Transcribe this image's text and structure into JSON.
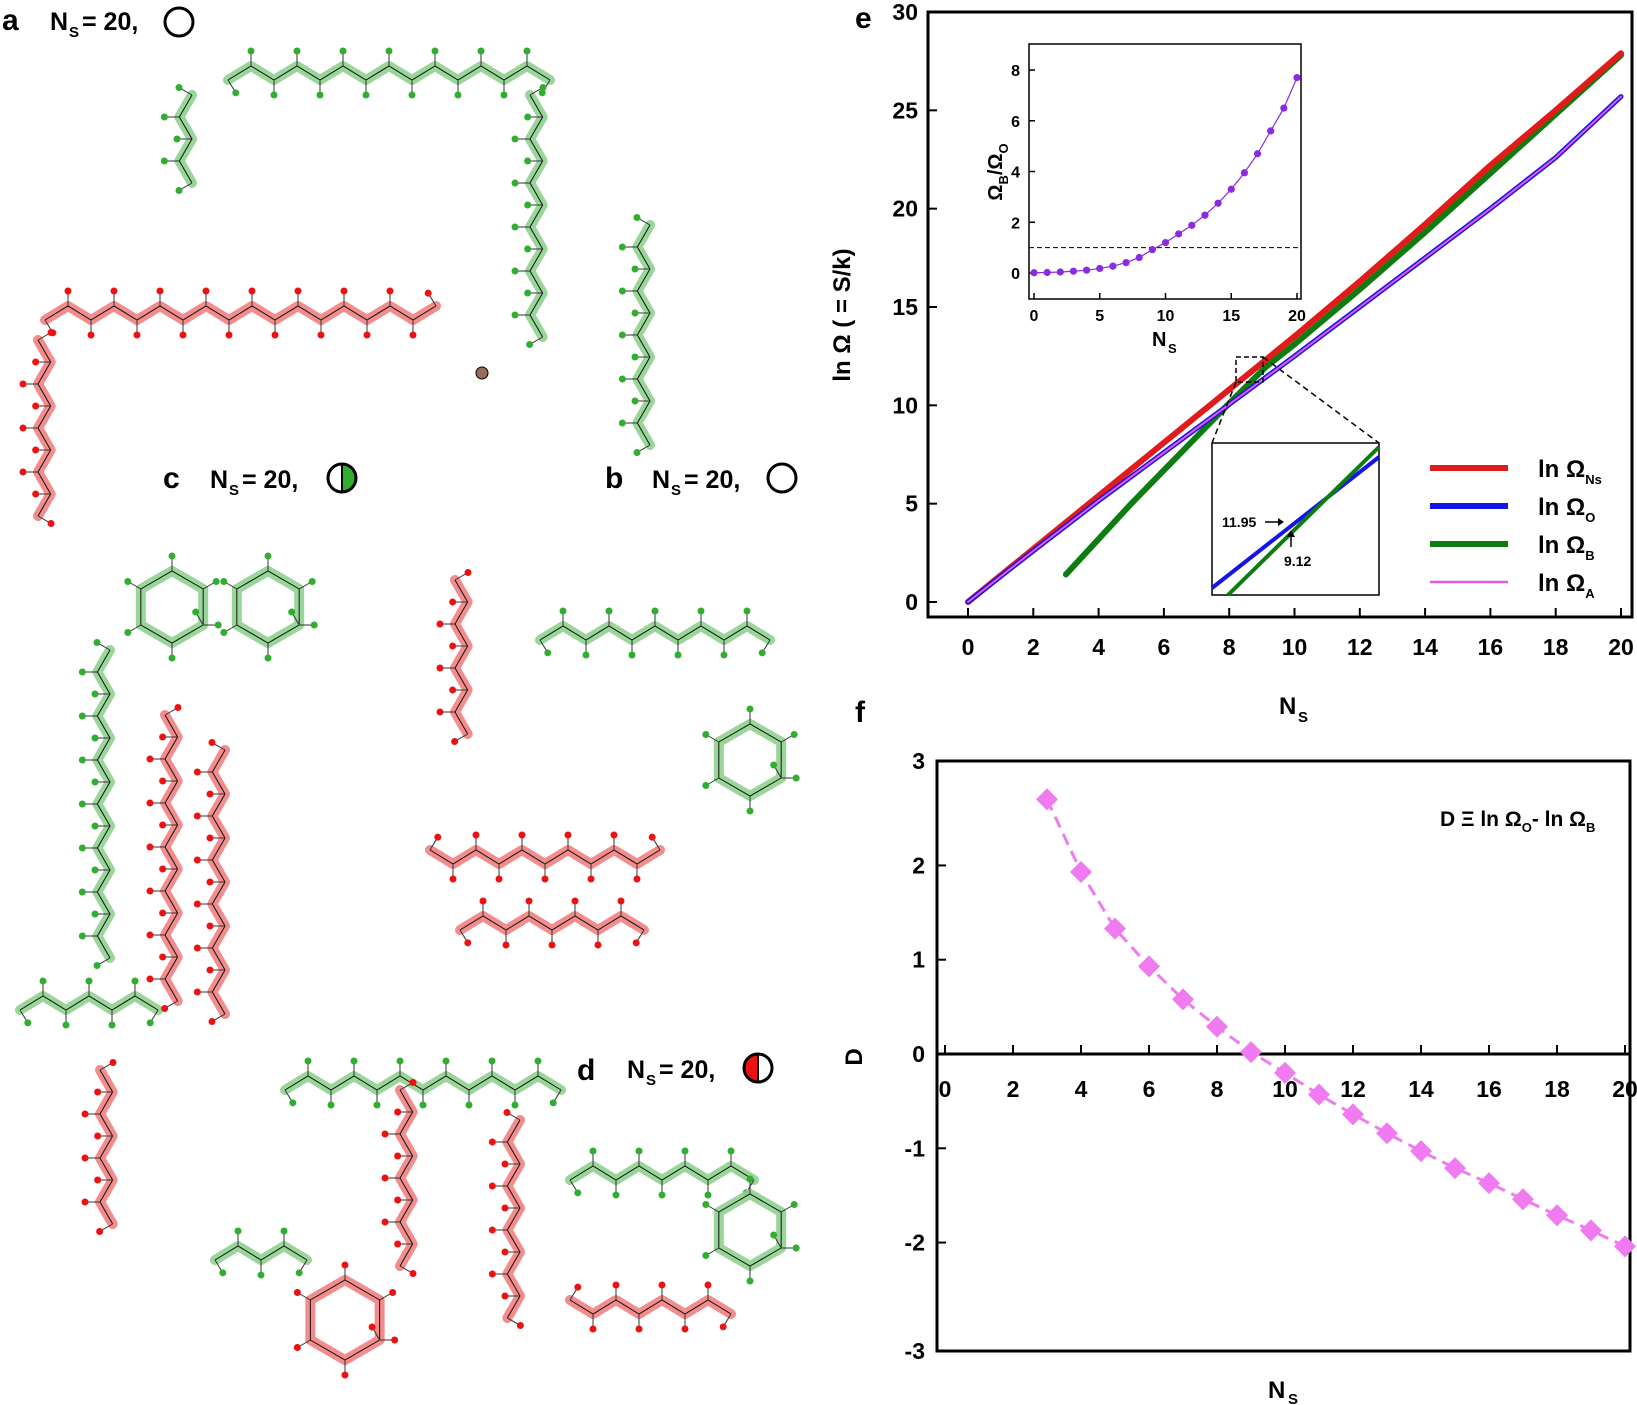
{
  "panels": {
    "a": {
      "letter": "a",
      "ns_label": "N",
      "ns_sub": "S",
      "ns_value": "= 20,"
    },
    "b": {
      "letter": "b",
      "ns_label": "N",
      "ns_sub": "S",
      "ns_value": "= 20,"
    },
    "c": {
      "letter": "c",
      "ns_label": "N",
      "ns_sub": "S",
      "ns_value": "= 20,"
    },
    "d": {
      "letter": "d",
      "ns_label": "N",
      "ns_sub": "S",
      "ns_value": "= 20,"
    },
    "e": {
      "letter": "e"
    },
    "f": {
      "letter": "f"
    }
  },
  "colors": {
    "red": "#f28080",
    "green": "#8fd08f",
    "dot_red": "#ee1111",
    "dot_green": "#2fae2f",
    "omega_ns": "#e11b1b",
    "omega_o": "#1414e6",
    "omega_b": "#0d7d10",
    "omega_a": "#e659e6",
    "ratio": "#8a2be2",
    "d_series": "#f07bf0"
  },
  "chart_data": [
    {
      "id": "e",
      "type": "line",
      "ylabel": "ln Ω ( = S/k)",
      "xlabel_main": "N",
      "xlabel_sub": "S",
      "xlim": [
        0,
        20
      ],
      "ylim": [
        0,
        30
      ],
      "xticks": [
        "0",
        "2",
        "4",
        "6",
        "8",
        "10",
        "12",
        "14",
        "16",
        "18",
        "20"
      ],
      "yticks": [
        "0",
        "5",
        "10",
        "15",
        "20",
        "25",
        "30"
      ],
      "series": [
        {
          "name": "ln Ω",
          "sub": "Ns",
          "color": "#e11b1b",
          "x": [
            0,
            2,
            4,
            6,
            8,
            10,
            12,
            14,
            16,
            18,
            20
          ],
          "y": [
            0,
            2.7,
            5.4,
            8.1,
            10.8,
            13.5,
            16.3,
            19.2,
            22.2,
            25.0,
            27.9
          ]
        },
        {
          "name": "ln Ω",
          "sub": "O",
          "color": "#1414e6",
          "x": [
            0,
            2,
            4,
            6,
            8,
            10,
            12,
            14,
            16,
            18,
            20
          ],
          "y": [
            0,
            2.6,
            5.15,
            7.6,
            10.05,
            12.5,
            15.0,
            17.5,
            20.0,
            22.6,
            25.7
          ]
        },
        {
          "name": "ln Ω",
          "sub": "B",
          "color": "#0d7d10",
          "x": [
            3,
            4,
            5,
            6,
            7,
            8,
            9.12,
            10,
            12,
            14,
            16,
            18,
            20
          ],
          "y": [
            1.4,
            3.2,
            5.0,
            6.7,
            8.4,
            10.1,
            11.95,
            13.1,
            15.9,
            18.8,
            21.8,
            24.8,
            27.8
          ]
        },
        {
          "name": "ln Ω",
          "sub": "A",
          "color": "#e659e6",
          "x": [
            0,
            2,
            4,
            6,
            8,
            10,
            12,
            14,
            16,
            18,
            20
          ],
          "y": [
            0,
            2.6,
            5.15,
            7.6,
            10.05,
            12.5,
            15.0,
            17.5,
            20.0,
            22.6,
            25.7
          ]
        }
      ],
      "zoom_annotation": {
        "y_value": "11.95",
        "x_value": "9.12"
      },
      "inset": {
        "type": "scatter-line",
        "ylabel_main": "Ω",
        "ylabel_sub_1": "B",
        "ylabel_slash": "/Ω",
        "ylabel_sub_2": "O",
        "xlabel_main": "N",
        "xlabel_sub": "S",
        "xlim": [
          0,
          20
        ],
        "ylim": [
          0,
          8
        ],
        "xticks": [
          "0",
          "5",
          "10",
          "15",
          "20"
        ],
        "yticks": [
          "0",
          "2",
          "4",
          "6",
          "8"
        ],
        "reference_line_y": 1,
        "x": [
          0,
          1,
          2,
          3,
          4,
          5,
          6,
          7,
          8,
          9,
          10,
          11,
          12,
          13,
          14,
          15,
          16,
          17,
          18,
          19,
          20
        ],
        "y": [
          0.01,
          0.02,
          0.04,
          0.07,
          0.11,
          0.18,
          0.27,
          0.41,
          0.61,
          0.92,
          1.2,
          1.54,
          1.88,
          2.28,
          2.75,
          3.3,
          3.95,
          4.7,
          5.6,
          6.5,
          7.7
        ]
      }
    },
    {
      "id": "f",
      "type": "line",
      "ylabel": "D",
      "xlabel_main": "N",
      "xlabel_sub": "S",
      "xlim": [
        0,
        20
      ],
      "ylim": [
        -3,
        3
      ],
      "xticks": [
        "0",
        "2",
        "4",
        "6",
        "8",
        "10",
        "12",
        "14",
        "16",
        "18",
        "20"
      ],
      "yticks": [
        "3",
        "2",
        "1",
        "0",
        "-1",
        "-2",
        "-3"
      ],
      "annotation": {
        "text1": "D Ξ ln Ω",
        "sub1": "O",
        "text2": "- ln Ω",
        "sub2": "B"
      },
      "x": [
        3,
        4,
        5,
        6,
        7,
        8,
        9,
        10,
        11,
        12,
        13,
        14,
        15,
        16,
        17,
        18,
        19,
        20
      ],
      "y": [
        2.7,
        1.93,
        1.33,
        0.93,
        0.58,
        0.29,
        0.02,
        -0.2,
        -0.43,
        -0.64,
        -0.84,
        -1.03,
        -1.21,
        -1.37,
        -1.54,
        -1.71,
        -1.87,
        -2.04
      ]
    }
  ]
}
